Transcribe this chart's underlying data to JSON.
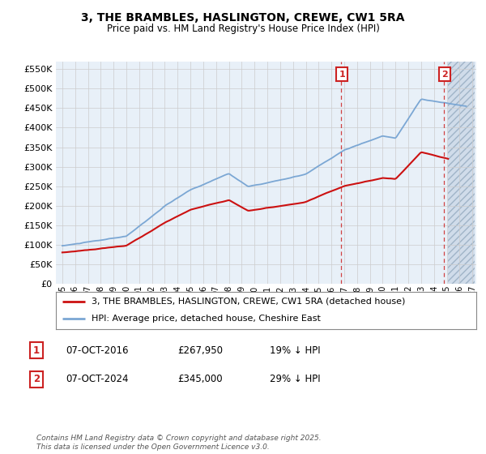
{
  "title": "3, THE BRAMBLES, HASLINGTON, CREWE, CW1 5RA",
  "subtitle": "Price paid vs. HM Land Registry's House Price Index (HPI)",
  "ylim": [
    0,
    570000
  ],
  "yticks": [
    0,
    50000,
    100000,
    150000,
    200000,
    250000,
    300000,
    350000,
    400000,
    450000,
    500000,
    550000
  ],
  "background_color": "#ffffff",
  "plot_bg_color": "#e8f0f8",
  "grid_color": "#cccccc",
  "hpi_color": "#7ba7d4",
  "price_color": "#cc1111",
  "dashed_line_color": "#cc2222",
  "legend_label_price": "3, THE BRAMBLES, HASLINGTON, CREWE, CW1 5RA (detached house)",
  "legend_label_hpi": "HPI: Average price, detached house, Cheshire East",
  "transaction1_date": "07-OCT-2016",
  "transaction1_price": "£267,950",
  "transaction1_note": "19% ↓ HPI",
  "transaction2_date": "07-OCT-2024",
  "transaction2_price": "£345,000",
  "transaction2_note": "29% ↓ HPI",
  "copyright_text": "Contains HM Land Registry data © Crown copyright and database right 2025.\nThis data is licensed under the Open Government Licence v3.0.",
  "t1_x": 2016.77,
  "t1_y": 267950,
  "t2_x": 2024.77,
  "t2_y": 345000,
  "future_shade_start": 2025.1,
  "future_shade_end": 2027.2,
  "x_min": 1994.5,
  "x_max": 2027.3
}
